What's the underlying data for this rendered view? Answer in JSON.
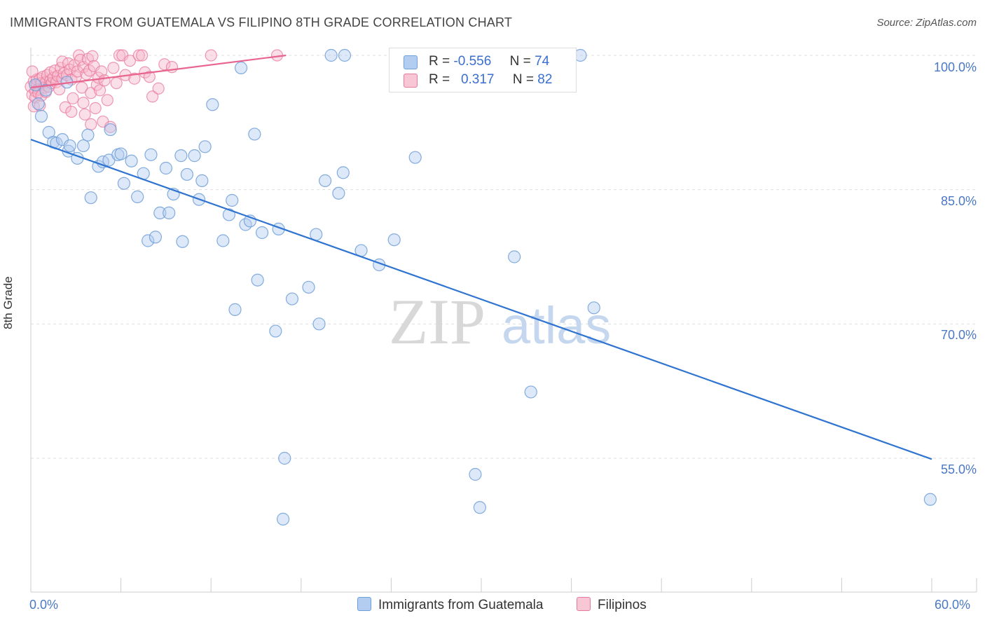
{
  "title": "IMMIGRANTS FROM GUATEMALA VS FILIPINO 8TH GRADE CORRELATION CHART",
  "source": "Source: ZipAtlas.com",
  "watermark": {
    "zip": "ZIP",
    "atlas": "atlas"
  },
  "legend_stats": {
    "series1": {
      "r_label": "R =",
      "r_value": "-0.556",
      "n_label": "N =",
      "n_value": "74"
    },
    "series2": {
      "r_label": "R =",
      "r_value": "0.317",
      "n_label": "N =",
      "n_value": "82"
    }
  },
  "legend": {
    "series1": "Immigrants from Guatemala",
    "series2": "Filipinos"
  },
  "colors": {
    "blue_fill": "#b3cdf0",
    "blue_stroke": "#6f9fd8",
    "blue_line": "#2f74d0",
    "pink_fill": "#f7b8cc",
    "pink_stroke": "#e8789c",
    "pink_line": "#e8658f",
    "tick_color": "#4a78c4"
  },
  "chart_data": {
    "type": "scatter",
    "title": "IMMIGRANTS FROM GUATEMALA VS FILIPINO 8TH GRADE CORRELATION CHART",
    "xlabel": "",
    "ylabel": "8th Grade",
    "x_ticks": [
      "0.0%",
      "60.0%"
    ],
    "y_ticks": [
      "100.0%",
      "85.0%",
      "70.0%",
      "55.0%"
    ],
    "xlim": [
      0,
      60
    ],
    "ylim": [
      41.5,
      102.5
    ],
    "grid": true,
    "legend_position": "bottom",
    "series": [
      {
        "name": "Immigrants from Guatemala",
        "color": "#6f9fd8",
        "r": -0.556,
        "n": 74,
        "trend": {
          "x": [
            0,
            60
          ],
          "y": [
            90.6,
            54.9
          ]
        },
        "points": [
          [
            0.3,
            96.7
          ],
          [
            0.7,
            93.2
          ],
          [
            1.2,
            91.4
          ],
          [
            1.5,
            90.3
          ],
          [
            1.7,
            90.2
          ],
          [
            2.1,
            90.6
          ],
          [
            2.5,
            89.3
          ],
          [
            2.6,
            89.9
          ],
          [
            3.1,
            88.5
          ],
          [
            3.5,
            89.9
          ],
          [
            3.8,
            91.1
          ],
          [
            4.0,
            84.1
          ],
          [
            4.5,
            87.6
          ],
          [
            4.8,
            88.1
          ],
          [
            5.2,
            88.3
          ],
          [
            5.3,
            91.7
          ],
          [
            5.8,
            88.9
          ],
          [
            6.0,
            89.0
          ],
          [
            6.2,
            85.7
          ],
          [
            6.7,
            88.2
          ],
          [
            7.1,
            84.2
          ],
          [
            7.5,
            86.8
          ],
          [
            7.8,
            79.3
          ],
          [
            8.0,
            88.9
          ],
          [
            8.3,
            79.7
          ],
          [
            8.6,
            82.4
          ],
          [
            9.0,
            87.4
          ],
          [
            9.2,
            82.4
          ],
          [
            9.5,
            84.5
          ],
          [
            10.0,
            88.8
          ],
          [
            10.1,
            79.2
          ],
          [
            10.4,
            86.7
          ],
          [
            10.9,
            88.8
          ],
          [
            11.2,
            83.9
          ],
          [
            11.4,
            86.0
          ],
          [
            11.6,
            89.8
          ],
          [
            12.1,
            94.5
          ],
          [
            12.8,
            79.3
          ],
          [
            13.2,
            82.2
          ],
          [
            13.4,
            83.8
          ],
          [
            13.6,
            71.6
          ],
          [
            14.0,
            98.6
          ],
          [
            14.3,
            81.1
          ],
          [
            14.6,
            81.5
          ],
          [
            14.9,
            91.2
          ],
          [
            15.1,
            74.9
          ],
          [
            15.4,
            80.2
          ],
          [
            16.3,
            69.2
          ],
          [
            16.5,
            80.6
          ],
          [
            16.8,
            48.2
          ],
          [
            16.9,
            55.0
          ],
          [
            17.4,
            72.8
          ],
          [
            18.5,
            74.1
          ],
          [
            19.0,
            80.0
          ],
          [
            19.2,
            70.0
          ],
          [
            19.6,
            86.0
          ],
          [
            20.0,
            100.0
          ],
          [
            20.5,
            84.6
          ],
          [
            20.9,
            100.0
          ],
          [
            20.8,
            86.9
          ],
          [
            22.0,
            78.2
          ],
          [
            23.2,
            76.6
          ],
          [
            24.2,
            79.4
          ],
          [
            25.6,
            88.6
          ],
          [
            29.6,
            53.2
          ],
          [
            29.9,
            49.5
          ],
          [
            32.2,
            77.5
          ],
          [
            33.3,
            62.4
          ],
          [
            36.6,
            100.0
          ],
          [
            37.5,
            71.8
          ],
          [
            59.9,
            50.4
          ],
          [
            0.5,
            94.6
          ],
          [
            1.0,
            96.1
          ],
          [
            2.4,
            97.0
          ]
        ]
      },
      {
        "name": "Filipinos",
        "color": "#e8789c",
        "r": 0.317,
        "n": 82,
        "trend": {
          "x": [
            0,
            17
          ],
          "y": [
            96.4,
            100.0
          ]
        },
        "points": [
          [
            0.0,
            96.5
          ],
          [
            0.1,
            95.6
          ],
          [
            0.2,
            94.3
          ],
          [
            0.2,
            97.1
          ],
          [
            0.3,
            96.0
          ],
          [
            0.3,
            95.3
          ],
          [
            0.4,
            96.8
          ],
          [
            0.4,
            97.3
          ],
          [
            0.5,
            96.2
          ],
          [
            0.5,
            95.8
          ],
          [
            0.6,
            97.4
          ],
          [
            0.7,
            96.9
          ],
          [
            0.7,
            95.5
          ],
          [
            0.8,
            97.6
          ],
          [
            0.9,
            96.4
          ],
          [
            1.0,
            97.0
          ],
          [
            1.0,
            95.9
          ],
          [
            1.1,
            97.8
          ],
          [
            1.2,
            96.5
          ],
          [
            1.3,
            97.2
          ],
          [
            1.3,
            98.1
          ],
          [
            1.4,
            96.9
          ],
          [
            1.5,
            97.5
          ],
          [
            1.6,
            98.3
          ],
          [
            1.7,
            97.0
          ],
          [
            1.8,
            97.7
          ],
          [
            1.9,
            96.2
          ],
          [
            2.0,
            98.6
          ],
          [
            2.1,
            97.4
          ],
          [
            2.1,
            99.3
          ],
          [
            2.2,
            98.0
          ],
          [
            2.3,
            94.2
          ],
          [
            2.4,
            97.8
          ],
          [
            2.5,
            99.1
          ],
          [
            2.6,
            98.4
          ],
          [
            2.7,
            97.3
          ],
          [
            2.7,
            93.7
          ],
          [
            2.8,
            95.2
          ],
          [
            2.9,
            98.9
          ],
          [
            3.0,
            97.6
          ],
          [
            3.1,
            98.2
          ],
          [
            3.2,
            100.0
          ],
          [
            3.3,
            99.5
          ],
          [
            3.4,
            96.4
          ],
          [
            3.5,
            98.7
          ],
          [
            3.5,
            94.7
          ],
          [
            3.6,
            93.4
          ],
          [
            3.7,
            97.9
          ],
          [
            3.8,
            99.6
          ],
          [
            3.9,
            98.3
          ],
          [
            4.0,
            92.3
          ],
          [
            4.0,
            95.8
          ],
          [
            4.1,
            99.9
          ],
          [
            4.2,
            98.8
          ],
          [
            4.3,
            94.1
          ],
          [
            4.4,
            96.7
          ],
          [
            4.5,
            97.5
          ],
          [
            4.6,
            96.1
          ],
          [
            4.7,
            98.2
          ],
          [
            4.8,
            92.6
          ],
          [
            4.9,
            97.2
          ],
          [
            5.1,
            95.0
          ],
          [
            5.3,
            92.0
          ],
          [
            5.5,
            98.6
          ],
          [
            5.7,
            96.9
          ],
          [
            5.9,
            100.0
          ],
          [
            6.1,
            100.0
          ],
          [
            6.3,
            97.8
          ],
          [
            6.6,
            99.4
          ],
          [
            6.9,
            97.4
          ],
          [
            7.2,
            100.0
          ],
          [
            7.4,
            100.0
          ],
          [
            7.6,
            98.1
          ],
          [
            7.9,
            97.6
          ],
          [
            8.1,
            95.4
          ],
          [
            8.5,
            96.3
          ],
          [
            8.9,
            99.0
          ],
          [
            9.4,
            98.7
          ],
          [
            12.0,
            100.0
          ],
          [
            16.4,
            100.0
          ],
          [
            0.1,
            98.2
          ],
          [
            0.6,
            94.4
          ]
        ]
      }
    ]
  }
}
